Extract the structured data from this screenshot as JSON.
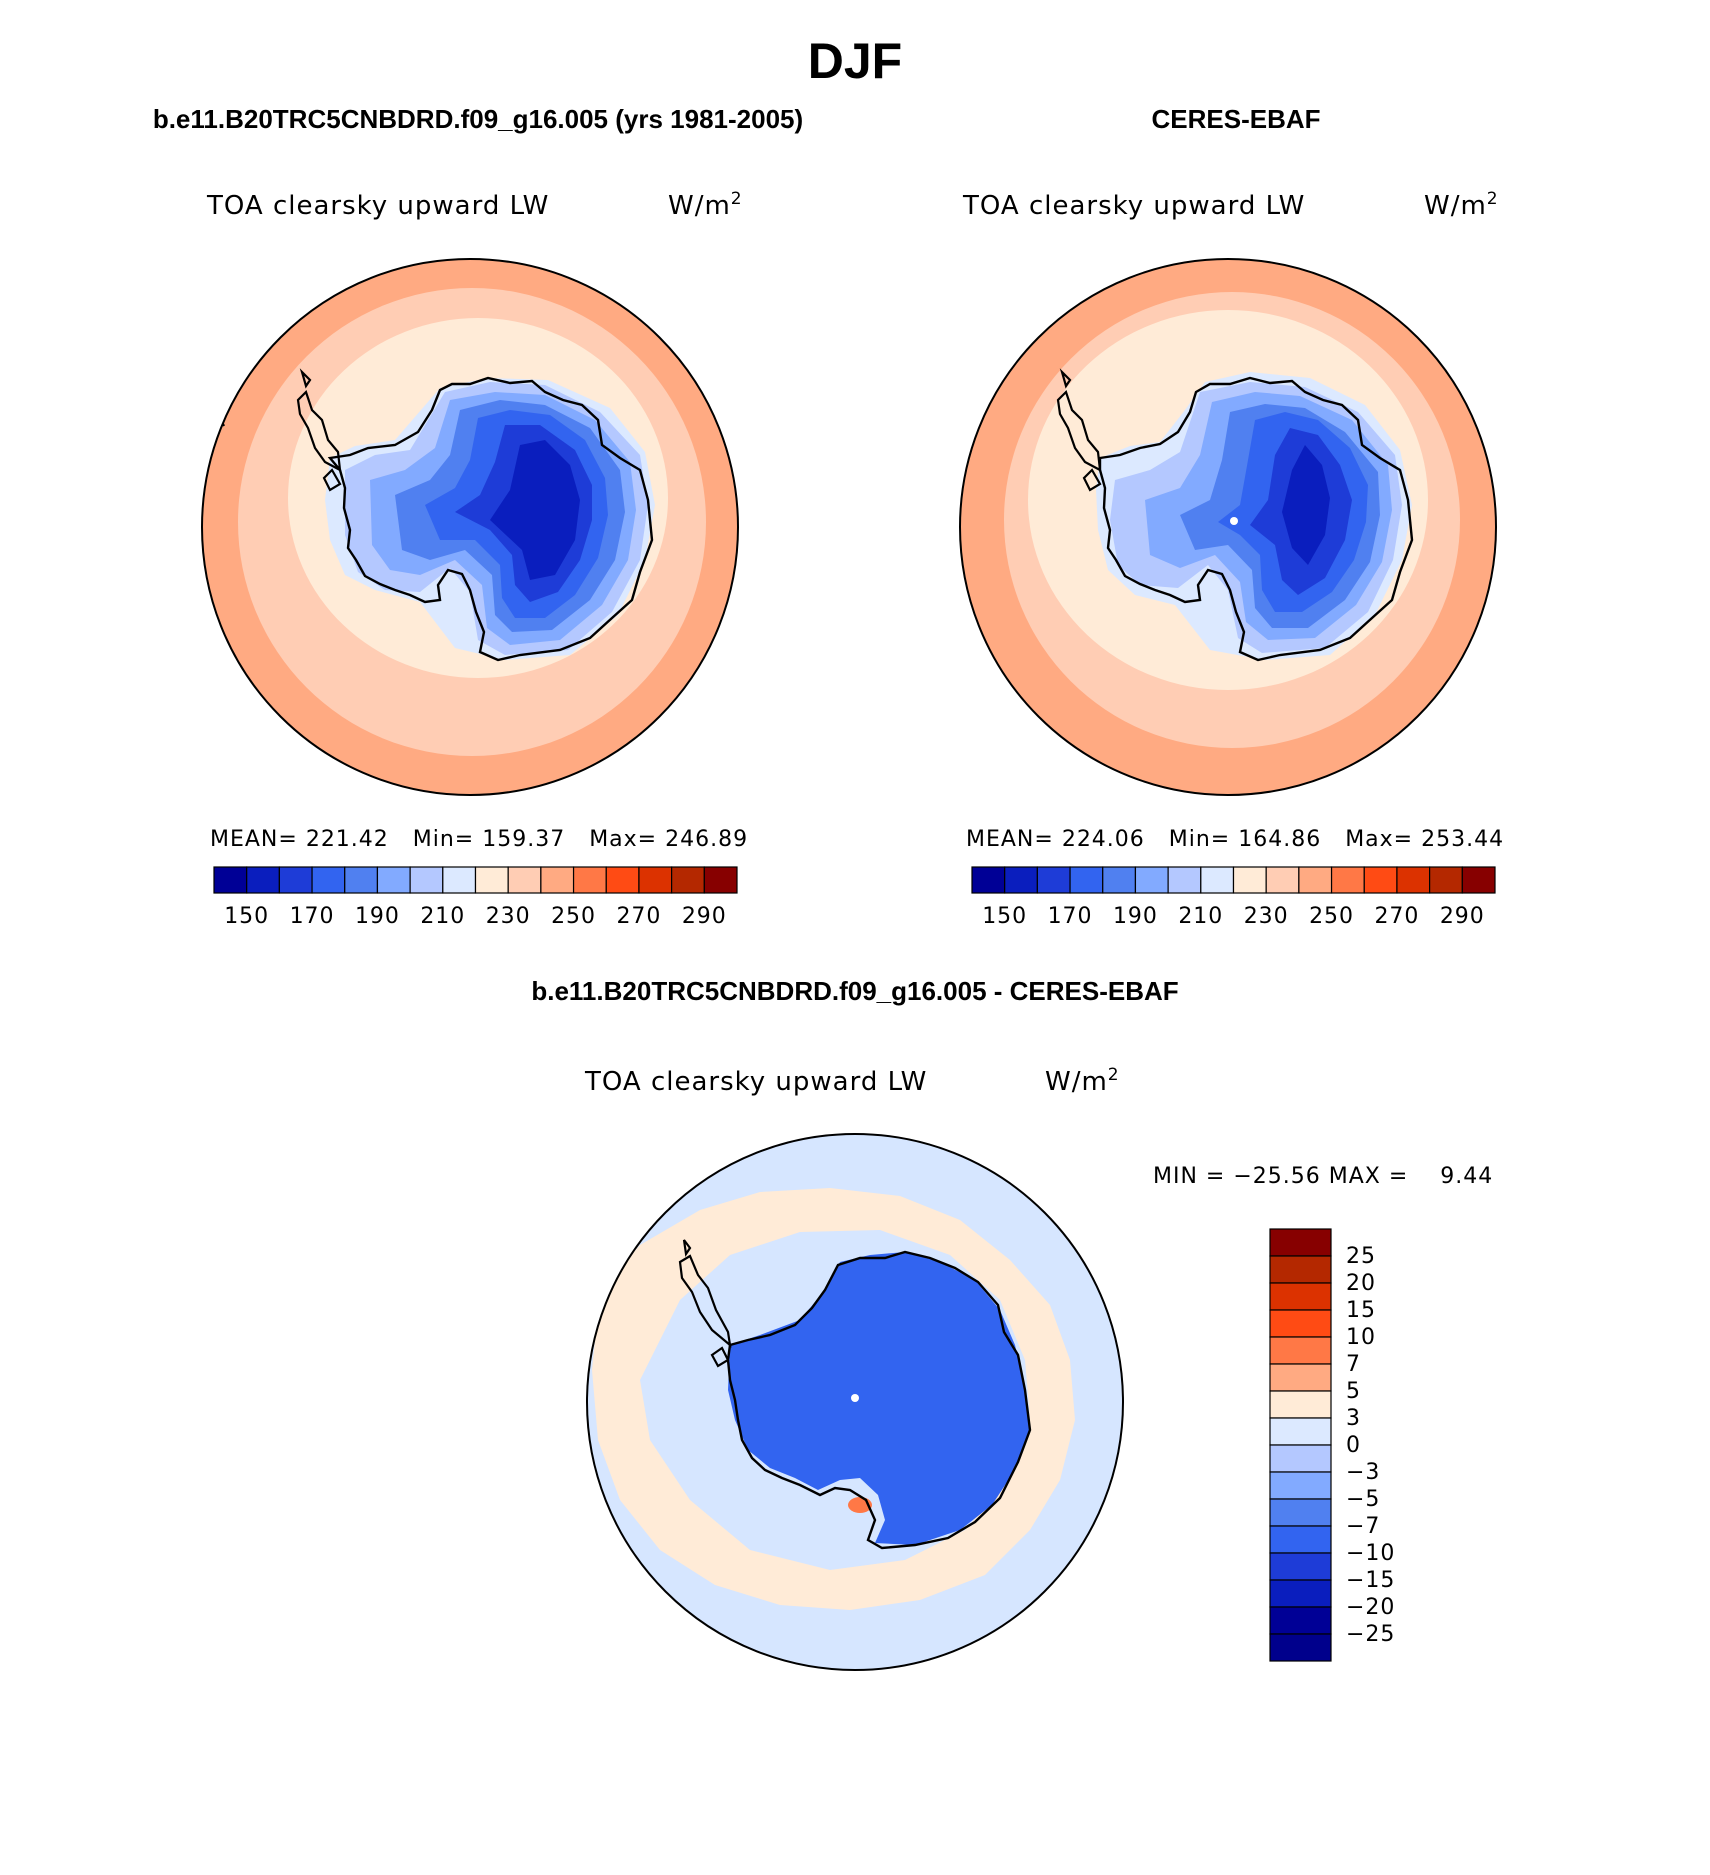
{
  "figure": {
    "season_title": "DJF",
    "diff_title": "b.e11.B20TRC5CNBDRD.f09_g16.005 - CERES-EBAF"
  },
  "panels": [
    {
      "header": "b.e11.B20TRC5CNBDRD.f09_g16.005 (yrs 1981-2005)",
      "variable": "TOA clearsky upward LW",
      "units": "W/m",
      "units_exp": "2",
      "stats": "MEAN= 221.42   Min= 159.37   Max= 246.89"
    },
    {
      "header": "CERES-EBAF",
      "variable": "TOA clearsky upward LW",
      "units": "W/m",
      "units_exp": "2",
      "stats": "MEAN= 224.06   Min= 164.86   Max= 253.44"
    }
  ],
  "diff_panel": {
    "variable": "TOA clearsky upward LW",
    "units": "W/m",
    "units_exp": "2",
    "minmax": "MIN = −25.56 MAX =    9.44"
  },
  "colorbar_main": {
    "colors": [
      "#000096",
      "#0a1ebe",
      "#1e3cd7",
      "#3264f0",
      "#5080f0",
      "#82aaff",
      "#b4c8ff",
      "#dce9ff",
      "#ffebd7",
      "#ffcdb4",
      "#ffaa82",
      "#ff7846",
      "#ff4b14",
      "#dc3200",
      "#b42800",
      "#870000"
    ],
    "labels": [
      "150",
      "170",
      "190",
      "210",
      "230",
      "250",
      "270",
      "290"
    ]
  },
  "colorbar_diff": {
    "colors": [
      "#870000",
      "#b42800",
      "#dc3200",
      "#ff4b14",
      "#ff7846",
      "#ffaa82",
      "#ffebd7",
      "#dce9ff",
      "#b4c8ff",
      "#82aaff",
      "#5080f0",
      "#3264f0",
      "#1e3cd7",
      "#0a1ebe",
      "#000096",
      "#00008c"
    ],
    "labels": [
      "25",
      "20",
      "15",
      "10",
      "7",
      "5",
      "3",
      "0",
      "−3",
      "−5",
      "−7",
      "−10",
      "−15",
      "−20",
      "−25"
    ]
  },
  "map_palette": {
    "ocean_outer": "#ffaa82",
    "ocean_mid": "#ffcdb4",
    "ocean_inner": "#ffebd7",
    "ice_edge": "#dce9ff",
    "ice_1": "#b4c8ff",
    "ice_2": "#82aaff",
    "ice_3": "#5080f0",
    "ice_4": "#3264f0",
    "ice_5": "#1e3cd7",
    "ice_6": "#0a1ebe",
    "diff_ocean": "#d6e6ff",
    "diff_warm": "#ffebd7",
    "diff_land": "#3264f0"
  }
}
